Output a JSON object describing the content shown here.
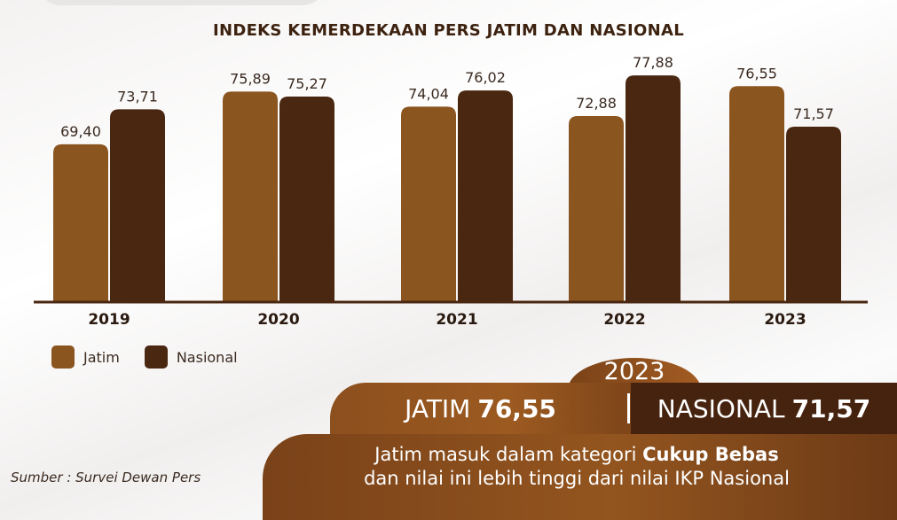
{
  "chart_data": {
    "type": "bar",
    "title": "INDEKS KEMERDEKAAN PERS JATIM DAN NASIONAL",
    "categories": [
      "2019",
      "2020",
      "2021",
      "2022",
      "2023"
    ],
    "series": [
      {
        "name": "Jatim",
        "values": [
          69.4,
          75.89,
          74.04,
          72.88,
          76.55
        ],
        "labels": [
          "69,40",
          "75,89",
          "74,04",
          "72,88",
          "76,55"
        ],
        "color": "#8b5520"
      },
      {
        "name": "Nasional",
        "values": [
          73.71,
          75.27,
          76.02,
          77.88,
          71.57
        ],
        "labels": [
          "73,71",
          "75,27",
          "76,02",
          "77,88",
          "71,57"
        ],
        "color": "#4a2711"
      }
    ],
    "ylim": [
      50,
      80
    ],
    "grid": false,
    "legend": "bottom-left"
  },
  "summary": {
    "year": "2023",
    "jatim_label": "JATIM",
    "jatim_value": "76,55",
    "nasional_label": "NASIONAL",
    "nasional_value": "71,57",
    "line1_pre": "Jatim masuk dalam kategori ",
    "line1_bold": "Cukup Bebas",
    "line2": "dan nilai ini lebih tinggi dari nilai IKP Nasional"
  },
  "source": "Sumber : Survei Dewan Pers",
  "colors": {
    "jatim": "#8b5520",
    "nasional": "#4a2711",
    "axis": "#4a2711"
  }
}
